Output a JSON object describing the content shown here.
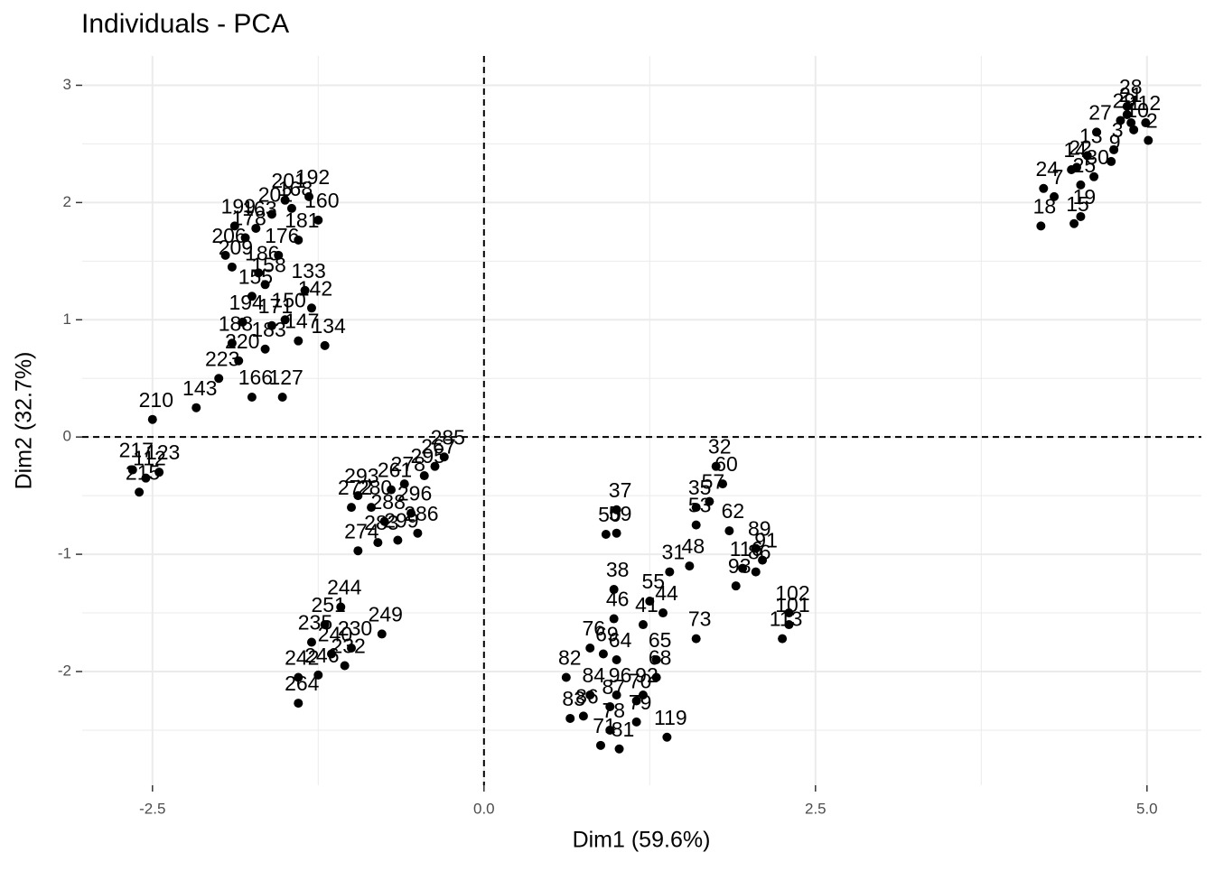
{
  "chart_data": {
    "type": "scatter",
    "title": "Individuals - PCA",
    "x_label": "Dim1 (59.6%)",
    "y_label": "Dim2 (32.7%)",
    "xlim": [
      -3.03,
      5.41
    ],
    "ylim": [
      -2.97,
      3.25
    ],
    "xticks": [
      -2.5,
      {
        "value": 0,
        "label": "0.0"
      },
      2.5,
      {
        "value": 5,
        "label": "5.0"
      }
    ],
    "yticks": [
      -2,
      -1,
      0,
      1,
      2,
      3
    ],
    "xminor": [
      -1.25,
      1.25,
      3.75
    ],
    "yminor": [
      -2.5,
      -1.5,
      -0.5,
      0.5,
      1.5,
      2.5
    ],
    "grid": true,
    "hline": 0,
    "vline": 0,
    "series": [
      {
        "color": "#000000",
        "x": [
          5.01,
          4.99,
          4.85,
          4.8,
          4.88,
          4.9,
          4.75,
          4.62,
          4.6,
          4.47,
          4.5,
          4.3,
          4.22,
          4.2,
          4.45,
          4.5,
          4.73,
          4.55,
          4.43,
          4.85,
          -1.32,
          -1.5,
          -1.45,
          -1.25,
          -1.6,
          -1.72,
          -1.8,
          -1.95,
          -1.9,
          -1.7,
          -1.35,
          -1.3,
          -1.75,
          -1.82,
          -1.6,
          -1.2,
          -1.4,
          -1.65,
          -1.85,
          -2.0,
          -1.75,
          -1.52,
          -2.17,
          -2.5,
          -1.4,
          -1.55,
          -1.88,
          -1.65,
          -1.5,
          -1.9,
          -2.65,
          -2.55,
          -2.45,
          -2.6,
          -0.3,
          -0.37,
          -0.45,
          -0.6,
          -0.7,
          -0.95,
          -0.85,
          -0.55,
          -0.75,
          -1.0,
          -0.95,
          -0.8,
          -0.65,
          -0.5,
          -0.77,
          -1.08,
          -1.2,
          -1.3,
          -1.15,
          -1.05,
          -1.0,
          -1.4,
          -1.4,
          -1.25,
          1.0,
          0.92,
          1.0,
          0.98,
          0.98,
          1.25,
          1.4,
          1.55,
          1.6,
          1.75,
          1.8,
          1.7,
          1.6,
          1.85,
          2.05,
          2.1,
          1.95,
          2.05,
          1.9,
          2.3,
          2.3,
          2.25,
          1.6,
          1.35,
          1.2,
          0.8,
          0.9,
          1.0,
          1.3,
          1.3,
          0.62,
          0.8,
          1.0,
          1.2,
          0.65,
          0.75,
          0.95,
          1.15,
          1.15,
          0.95,
          0.88,
          1.02,
          1.38
        ],
        "values": [
          2.53,
          2.68,
          2.75,
          2.7,
          2.68,
          2.62,
          2.45,
          2.6,
          2.22,
          2.3,
          2.15,
          2.05,
          2.12,
          1.8,
          1.82,
          1.88,
          2.35,
          2.4,
          2.28,
          2.82,
          2.05,
          2.02,
          1.95,
          1.85,
          1.9,
          1.78,
          1.7,
          1.55,
          1.45,
          1.4,
          1.25,
          1.1,
          1.2,
          0.98,
          0.95,
          0.78,
          0.82,
          0.75,
          0.65,
          0.5,
          0.34,
          0.34,
          0.25,
          0.15,
          1.68,
          1.55,
          1.8,
          1.3,
          1.0,
          0.8,
          -0.28,
          -0.35,
          -0.3,
          -0.47,
          -0.17,
          -0.25,
          -0.33,
          -0.4,
          -0.45,
          -0.5,
          -0.6,
          -0.65,
          -0.72,
          -0.6,
          -0.97,
          -0.9,
          -0.88,
          -0.82,
          -1.68,
          -1.45,
          -1.6,
          -1.75,
          -1.85,
          -1.95,
          -1.8,
          -2.05,
          -2.27,
          -2.03,
          -0.82,
          -0.83,
          -0.62,
          -1.3,
          -1.55,
          -1.4,
          -1.15,
          -1.1,
          -0.75,
          -0.25,
          -0.4,
          -0.55,
          -0.6,
          -0.8,
          -0.95,
          -1.05,
          -1.12,
          -1.15,
          -1.27,
          -1.5,
          -1.6,
          -1.72,
          -1.72,
          -1.5,
          -1.6,
          -1.8,
          -1.85,
          -1.9,
          -1.9,
          -2.05,
          -2.05,
          -2.2,
          -2.2,
          -2.2,
          -2.4,
          -2.38,
          -2.3,
          -2.25,
          -2.43,
          -2.5,
          -2.63,
          -2.66,
          -2.56
        ],
        "labels": [
          "2",
          "12",
          "21",
          "29",
          "1",
          "10",
          "3",
          "27",
          "30",
          "22",
          "25",
          "7",
          "24",
          "18",
          "15",
          "19",
          "9",
          "13",
          "14",
          "28",
          "192",
          "201",
          "168",
          "160",
          "202",
          "163",
          "178",
          "206",
          "209",
          "186",
          "133",
          "142",
          "155",
          "194",
          "171",
          "134",
          "147",
          "183",
          "220",
          "223",
          "166",
          "127",
          "143",
          "210",
          "181",
          "176",
          "199",
          "158",
          "150",
          "188",
          "217",
          "112",
          "123",
          "215",
          "285",
          "267",
          "295",
          "278",
          "261",
          "293",
          "280",
          "296",
          "288",
          "272",
          "274",
          "283",
          "299",
          "286",
          "249",
          "244",
          "251",
          "235",
          "240",
          "232",
          "230",
          "242",
          "264",
          "246",
          "59",
          "50",
          "37",
          "38",
          "46",
          "55",
          "31",
          "48",
          "53",
          "32",
          "60",
          "57",
          "35",
          "62",
          "89",
          "91",
          "116",
          "86",
          "93",
          "102",
          "101",
          "113",
          "73",
          "44",
          "41",
          "76",
          "69",
          "64",
          "65",
          "68",
          "82",
          "84",
          "96",
          "92",
          "83",
          "86",
          "87",
          "70",
          "79",
          "78",
          "71",
          "81",
          "119"
        ]
      }
    ]
  }
}
